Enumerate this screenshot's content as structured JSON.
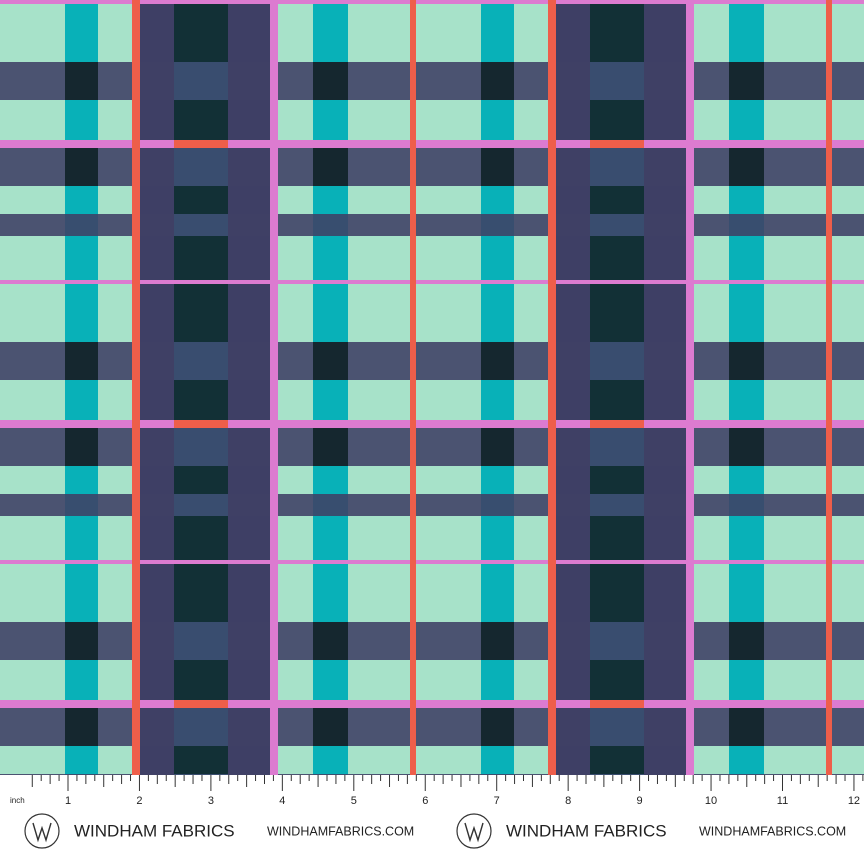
{
  "ruler": {
    "unit": "inch",
    "labels": [
      1,
      2,
      3,
      4,
      5,
      6,
      7,
      8,
      9,
      10,
      11,
      12
    ]
  },
  "footer": {
    "logos": [
      {
        "brand": "WINDHAM FABRICS",
        "url": "WINDHAMFABRICS.COM"
      },
      {
        "brand": "WINDHAM FABRICS",
        "url": "WINDHAMFABRICS.COM"
      }
    ]
  }
}
